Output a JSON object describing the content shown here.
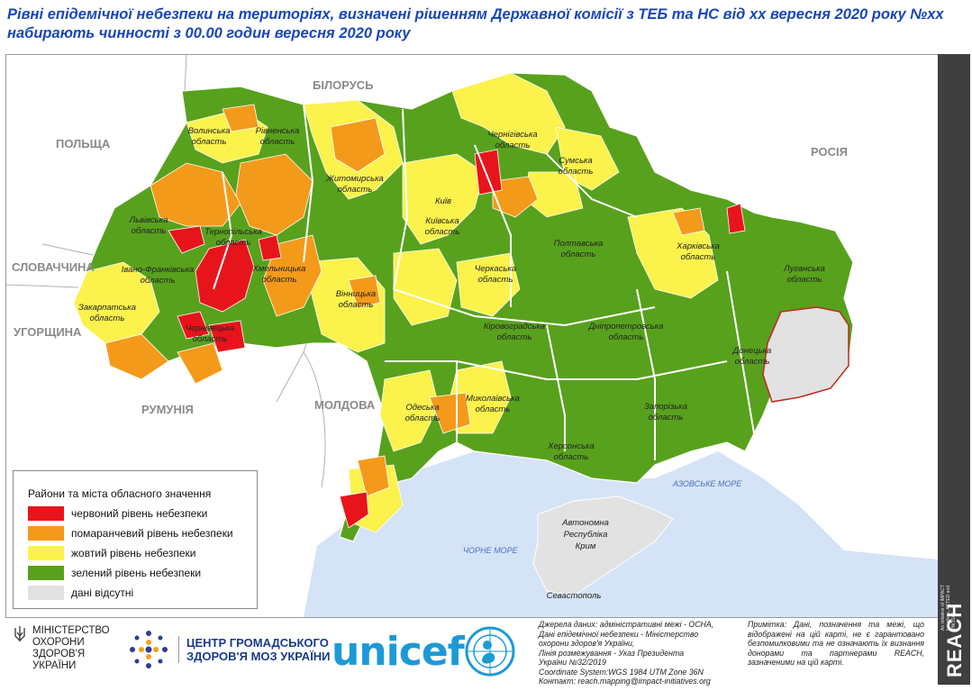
{
  "title": {
    "line1": "Рівні епідемічної небезпеки на територіях, визначені рішенням Державної комісії з ТЕБ та НС від хх вересня 2020 року №хх",
    "line2": "набирають чинності з 00.00 годин  вересня 2020 року"
  },
  "map": {
    "countries": {
      "belarus": "БІЛОРУСЬ",
      "poland": "ПОЛЬЩА",
      "russia": "РОСІЯ",
      "slovakia": "СЛОВАЧЧИНА",
      "hungary": "УГОРЩИНА",
      "romania": "РУМУНІЯ",
      "moldova": "МОЛДОВА"
    },
    "seas": {
      "azov": "АЗОВСЬКЕ МОРЕ",
      "black": "ЧОРНЕ МОРЕ"
    },
    "cities": {
      "kyiv": "Київ",
      "sevastopol": "Севастополь"
    },
    "crimea": [
      "Автономна",
      "Республіка",
      "Крим"
    ],
    "oblasts": {
      "volynska": [
        "Волинська",
        "область"
      ],
      "rivnenska": [
        "Рівненська",
        "область"
      ],
      "zhytomyrska": [
        "Житомирська",
        "область"
      ],
      "chernihivska": [
        "Чернігівська",
        "область"
      ],
      "sumska": [
        "Сумська",
        "область"
      ],
      "lvivska": [
        "Львівська",
        "область"
      ],
      "ternopilska": [
        "Тернопільська",
        "область"
      ],
      "ivanofrankivska": [
        "Івано-Франківська",
        "область"
      ],
      "khmelnytska": [
        "Хмельницька",
        "область"
      ],
      "kyivska": [
        "Київська",
        "область"
      ],
      "poltavska": [
        "Полтавська",
        "область"
      ],
      "kharkivska": [
        "Харківська",
        "область"
      ],
      "luhanska": [
        "Луганська",
        "область"
      ],
      "zakarpatska": [
        "Закарпатська",
        "область"
      ],
      "vinnytska": [
        "Вінницька",
        "область"
      ],
      "cherkaska": [
        "Черкаська",
        "область"
      ],
      "chernivetska": [
        "Чернівецька",
        "область"
      ],
      "kirovohradska": [
        "Кіровоградська",
        "область"
      ],
      "dnipropetrovska": [
        "Дніпропетровська",
        "область"
      ],
      "donetska": [
        "Донецька",
        "область"
      ],
      "odeska": [
        "Одеська",
        "область"
      ],
      "mykolaivska": [
        "Миколаївська",
        "область"
      ],
      "zaporizka": [
        "Запорізька",
        "область"
      ],
      "khersonska": [
        "Херсонська",
        "область"
      ]
    }
  },
  "legend": {
    "title": "Райони та міста обласного значення",
    "items": [
      {
        "label": "червоний рівень небезпеки",
        "color": "#e8141b"
      },
      {
        "label": "помаранчевий рівень небезпеки",
        "color": "#f49a1a"
      },
      {
        "label": "жовтий рівень небезпеки",
        "color": "#fbf24c"
      },
      {
        "label": "зелений рівень небезпеки",
        "color": "#58a11d"
      },
      {
        "label": "дані відсутні",
        "color": "#e2e2e2"
      }
    ]
  },
  "footer": {
    "moz": [
      "МІНІСТЕРСТВО",
      "ОХОРОНИ",
      "ЗДОРОВ'Я",
      "УКРАЇНИ"
    ],
    "cgz": [
      "ЦЕНТР ГРОМАДСЬКОГО",
      "ЗДОРОВ'Я МОЗ УКРАЇНИ"
    ],
    "unicef": "unicef",
    "sources": [
      "Джерела даних: адміністративні межі - OCHA,",
      "Дані епідемічної небезпеки - Міністерство",
      "охорони здоров'я України,",
      "Лінія розмежування - Указ Президента",
      "України №32/2019",
      "Coordinate System:WGS 1984 UTM Zone 36N",
      "Контакт: reach.mapping@impact-initiatives.org"
    ],
    "note": "Примітка: Дані, позначення та межі, що відображені на цій карті, не є гарантовано безпомилковими та не означають їх визнання донорами та партнерами REACH, зазначеними на цій карті."
  },
  "reach": {
    "logo": "REACH",
    "tagline": "An initiative of IMPACT Initiatives, ACTED and UNOSAT"
  },
  "colors": {
    "red": "#e8141b",
    "orange": "#f49a1a",
    "yellow": "#fbf24c",
    "green": "#58a11d",
    "nodata": "#e2e2e2",
    "sea": "#d5e3f7",
    "title": "#1a46b8"
  }
}
